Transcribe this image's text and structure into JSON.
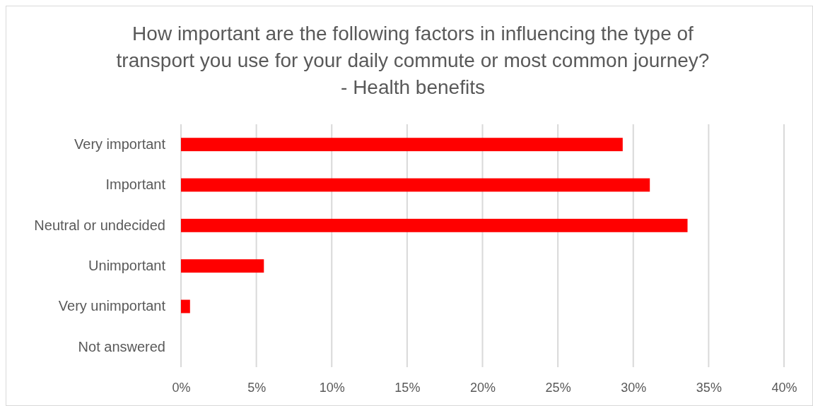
{
  "chart_data": {
    "type": "bar",
    "orientation": "horizontal",
    "title": "How important are the following factors in influencing the type of\ntransport you use for your daily commute or most common journey?\n- Health benefits",
    "categories": [
      "Very important",
      "Important",
      "Neutral or undecided",
      "Unimportant",
      "Very unimportant",
      "Not answered"
    ],
    "values": [
      29.3,
      31.1,
      33.6,
      5.5,
      0.6,
      0
    ],
    "color": "#ff0000",
    "xlim": [
      0,
      40
    ],
    "xticks": [
      {
        "value": 0,
        "label": "0%"
      },
      {
        "value": 5,
        "label": "5%"
      },
      {
        "value": 10,
        "label": "10%"
      },
      {
        "value": 15,
        "label": "15%"
      },
      {
        "value": 20,
        "label": "20%"
      },
      {
        "value": 25,
        "label": "25%"
      },
      {
        "value": 30,
        "label": "30%"
      },
      {
        "value": 35,
        "label": "35%"
      },
      {
        "value": 40,
        "label": "40%"
      }
    ],
    "grid": "x"
  }
}
